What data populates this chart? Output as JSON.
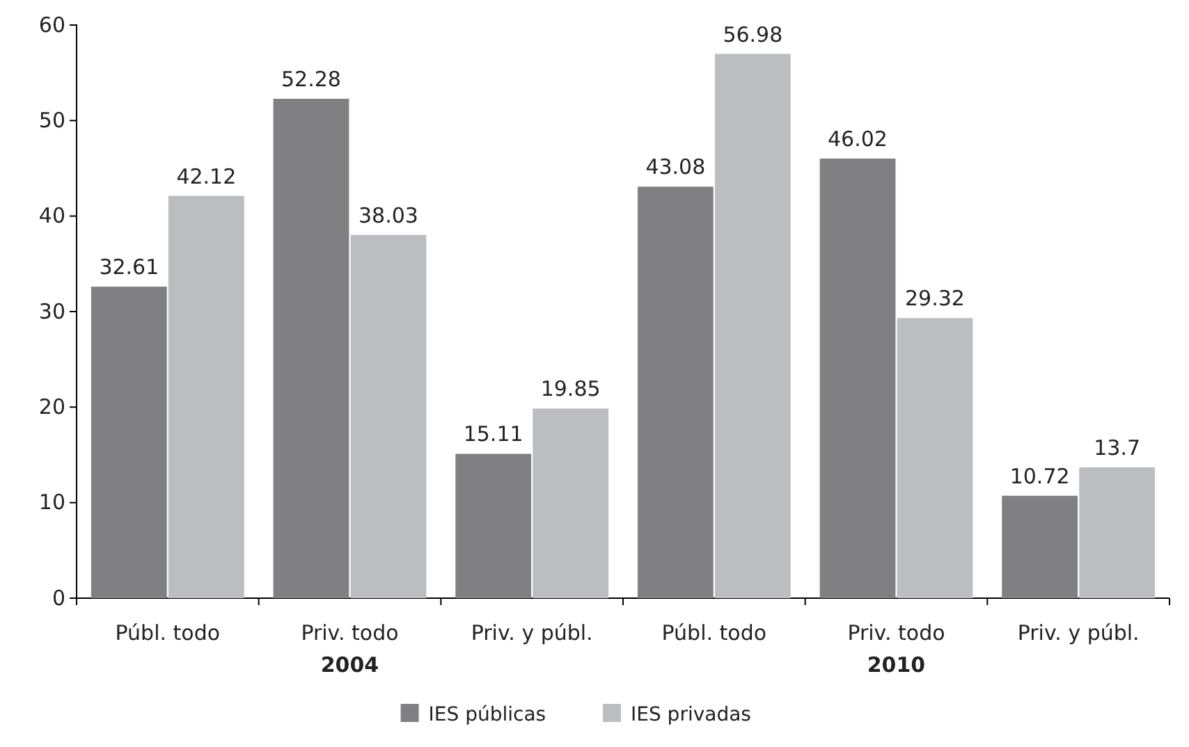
{
  "chart_data": {
    "type": "bar",
    "categories": [
      "Públ. todo",
      "Priv. todo",
      "Priv. y públ.",
      "Públ. todo",
      "Priv. todo",
      "Priv. y públ."
    ],
    "series": [
      {
        "name": "IES públicas",
        "color": "#808083",
        "values": [
          32.61,
          52.28,
          15.11,
          43.08,
          46.02,
          10.72
        ]
      },
      {
        "name": "IES privadas",
        "color": "#bcbdc1",
        "values": [
          42.12,
          38.03,
          19.85,
          56.98,
          29.32,
          13.7
        ]
      }
    ],
    "annotations": [
      "2004",
      "2010"
    ],
    "ylim": [
      0,
      60
    ],
    "yticks": [
      0,
      10,
      20,
      30,
      40,
      50,
      60
    ],
    "data_labels": true,
    "grid": false,
    "legend": "bottom"
  }
}
